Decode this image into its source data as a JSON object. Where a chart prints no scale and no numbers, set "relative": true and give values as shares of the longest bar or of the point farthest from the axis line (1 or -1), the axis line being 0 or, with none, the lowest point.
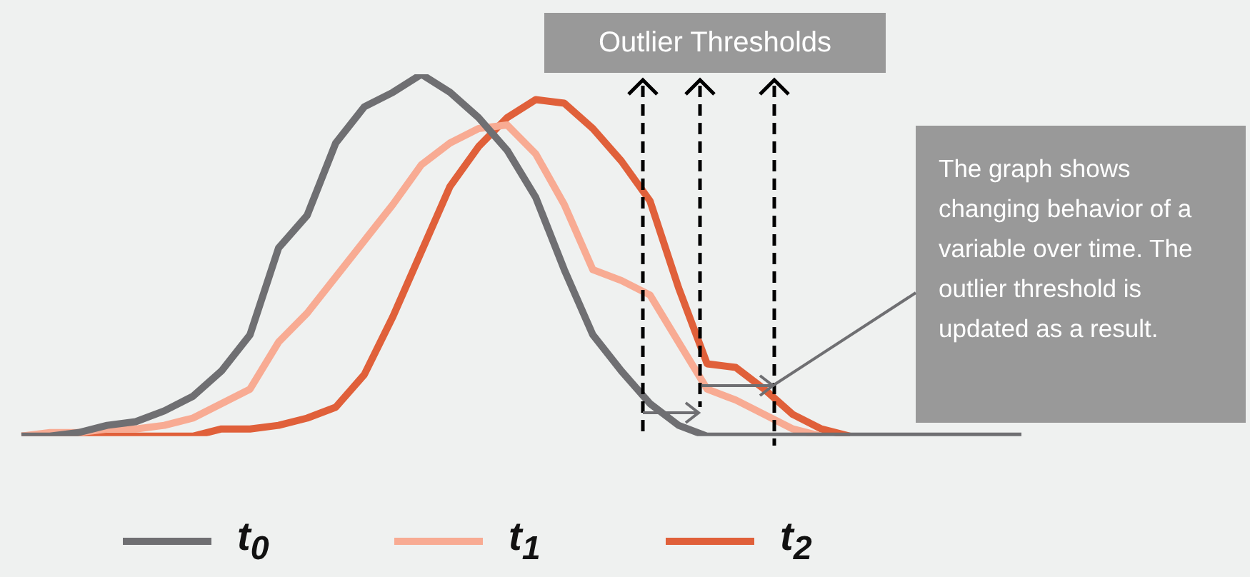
{
  "chart_data": {
    "type": "line",
    "relative": true,
    "categories": [
      null,
      null,
      null,
      null,
      null,
      null,
      null,
      null,
      null,
      null,
      null,
      null,
      null,
      null,
      null,
      null,
      null,
      null,
      null,
      null,
      null,
      null,
      null,
      null,
      null,
      null,
      null,
      null,
      null,
      null,
      null,
      null,
      null,
      null,
      null,
      null
    ],
    "series": [
      {
        "name": "t$_{0}$",
        "color": "#6f6f72",
        "values": [
          0,
          0,
          0.01,
          0.03,
          0.04,
          0.07,
          0.11,
          0.18,
          0.28,
          0.52,
          0.61,
          0.81,
          0.91,
          0.95,
          1,
          0.95,
          0.88,
          0.79,
          0.66,
          0.46,
          0.28,
          0.18,
          0.09,
          0.03,
          0,
          0,
          0,
          0,
          0,
          0,
          0,
          0,
          0,
          0,
          0,
          0
        ]
      },
      {
        "name": "t$_{1}$",
        "color": "#f8ab93",
        "values": [
          0,
          0.01,
          0.01,
          0.02,
          0.02,
          0.03,
          0.05,
          0.09,
          0.13,
          0.26,
          0.34,
          0.44,
          0.54,
          0.64,
          0.75,
          0.81,
          0.85,
          0.86,
          0.78,
          0.64,
          0.46,
          0.43,
          0.39,
          0.26,
          0.13,
          0.1,
          0.06,
          0.02,
          0,
          null,
          null,
          null,
          null,
          null,
          null,
          null
        ]
      },
      {
        "name": "t$_{2}$",
        "color": "#e0603a",
        "values": [
          0,
          0,
          0,
          0,
          0,
          0,
          0,
          0.02,
          0.02,
          0.03,
          0.05,
          0.08,
          0.17,
          0.33,
          0.51,
          0.69,
          0.8,
          0.88,
          0.93,
          0.92,
          0.85,
          0.76,
          0.65,
          0.41,
          0.2,
          0.19,
          0.13,
          0.06,
          0.02,
          0,
          null,
          null,
          null,
          null,
          null,
          null
        ]
      }
    ],
    "legend": "bottom",
    "grid": false,
    "marker": "none",
    "line_style": "solid",
    "annotations": [
      "Outlier Thresholds",
      "The graph shows changing behavior of a variable over time. The outlier threshold is updated as a result."
    ]
  }
}
